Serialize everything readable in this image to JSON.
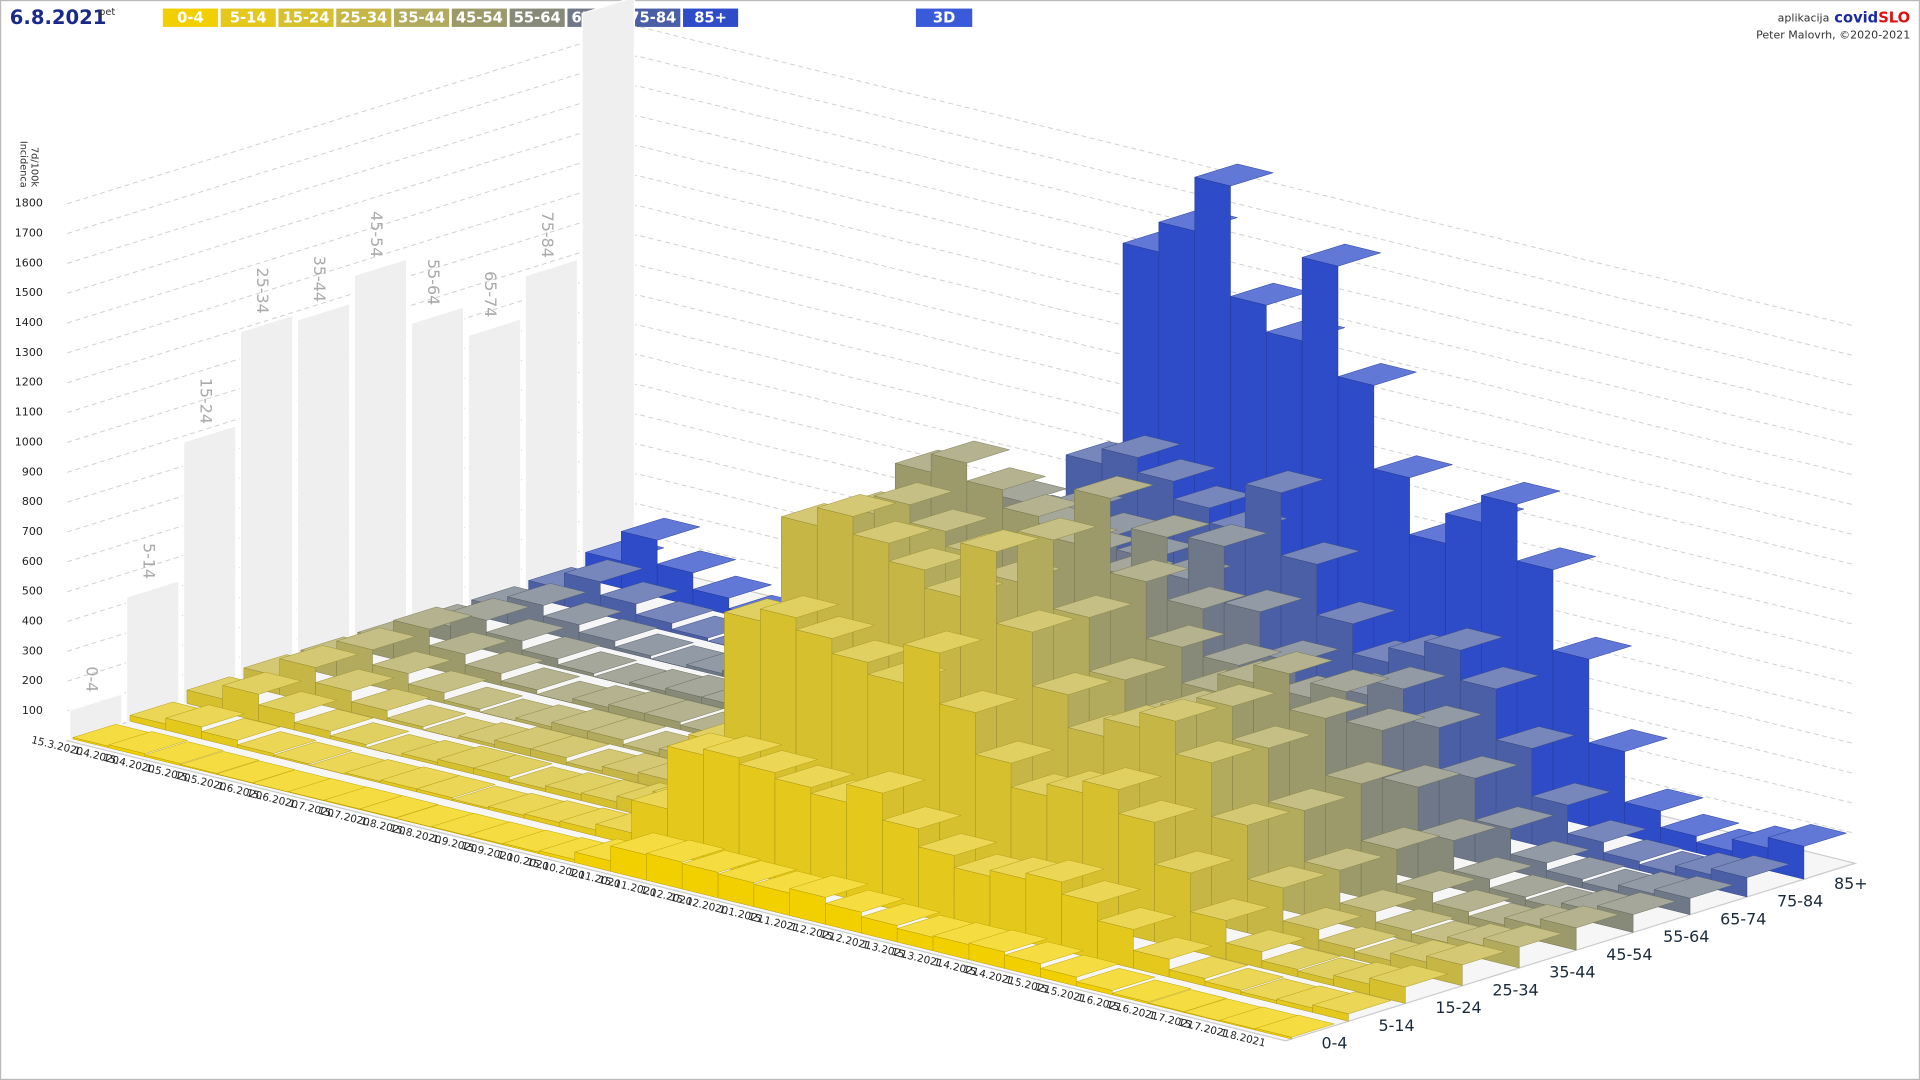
{
  "header": {
    "date": "6.8.2021",
    "weekday": "pet",
    "button_3d": "3D",
    "app_prefix": "aplikacija",
    "app_name_1": "covid",
    "app_name_2": "SLO",
    "author": "Peter Malovrh, ©2020-2021"
  },
  "chart_data": {
    "type": "bar3d",
    "y_label": "Incidenca",
    "y_unit": "7d/100k",
    "x": [
      "15.3.2020",
      "1.4.2020",
      "15.4.2020",
      "1.5.2020",
      "15.5.2020",
      "1.6.2020",
      "15.6.2020",
      "1.7.2020",
      "15.7.2020",
      "1.8.2020",
      "15.8.2020",
      "1.9.2020",
      "15.9.2020",
      "1.10.2020",
      "15.10.2020",
      "1.11.2020",
      "15.11.2020",
      "1.12.2020",
      "15.12.2020",
      "1.1.2021",
      "15.1.2021",
      "1.2.2021",
      "15.2.2021",
      "1.3.2021",
      "15.3.2021",
      "1.4.2021",
      "15.4.2021",
      "1.5.2021",
      "15.5.2021",
      "1.6.2021",
      "15.6.2021",
      "1.7.2021",
      "15.7.2021",
      "1.8.2021"
    ],
    "series": [
      {
        "name": "0-4",
        "color": "#f2d000",
        "values": [
          5,
          10,
          6,
          3,
          1,
          0,
          1,
          2,
          2,
          1,
          2,
          3,
          5,
          10,
          35,
          85,
          90,
          85,
          80,
          75,
          90,
          70,
          55,
          45,
          50,
          55,
          45,
          30,
          15,
          6,
          3,
          2,
          4,
          6
        ]
      },
      {
        "name": "5-14",
        "color": "#e4c81c",
        "values": [
          20,
          40,
          25,
          10,
          5,
          0,
          5,
          10,
          10,
          5,
          10,
          15,
          20,
          40,
          150,
          360,
          380,
          360,
          340,
          320,
          380,
          290,
          230,
          190,
          210,
          230,
          190,
          130,
          60,
          25,
          15,
          10,
          15,
          25
        ]
      },
      {
        "name": "15-24",
        "color": "#d6c02e",
        "values": [
          45,
          90,
          55,
          25,
          10,
          0,
          10,
          20,
          20,
          10,
          20,
          25,
          45,
          90,
          310,
          750,
          790,
          750,
          700,
          660,
          790,
          620,
          480,
          400,
          440,
          480,
          400,
          260,
          130,
          55,
          25,
          20,
          35,
          55
        ]
      },
      {
        "name": "25-34",
        "color": "#c6b646",
        "values": [
          60,
          120,
          70,
          35,
          10,
          0,
          10,
          25,
          25,
          10,
          25,
          35,
          60,
          120,
          420,
          1010,
          1070,
          1010,
          950,
          890,
          1070,
          830,
          650,
          540,
          600,
          650,
          540,
          360,
          180,
          70,
          35,
          25,
          50,
          70
        ]
      },
      {
        "name": "35-44",
        "color": "#b2aa5c",
        "values": [
          60,
          120,
          70,
          35,
          10,
          0,
          10,
          25,
          25,
          10,
          25,
          35,
          60,
          120,
          410,
          990,
          1050,
          990,
          940,
          880,
          1050,
          820,
          640,
          530,
          590,
          640,
          530,
          350,
          180,
          70,
          35,
          25,
          45,
          70
        ]
      },
      {
        "name": "45-54",
        "color": "#9c9a6a",
        "values": [
          60,
          130,
          75,
          40,
          15,
          0,
          15,
          25,
          25,
          15,
          25,
          40,
          60,
          130,
          440,
          1070,
          1130,
          1070,
          1010,
          950,
          1130,
          880,
          690,
          570,
          630,
          690,
          570,
          380,
          190,
          75,
          40,
          25,
          50,
          75
        ]
      },
      {
        "name": "55-64",
        "color": "#878a78",
        "values": [
          50,
          100,
          60,
          30,
          10,
          0,
          10,
          20,
          20,
          10,
          20,
          30,
          50,
          100,
          360,
          880,
          940,
          880,
          830,
          780,
          940,
          730,
          570,
          470,
          520,
          570,
          470,
          310,
          160,
          60,
          30,
          20,
          40,
          60
        ]
      },
      {
        "name": "65-74",
        "color": "#6e7888",
        "values": [
          50,
          90,
          55,
          30,
          10,
          0,
          10,
          20,
          20,
          10,
          20,
          30,
          50,
          90,
          330,
          800,
          850,
          800,
          750,
          710,
          850,
          660,
          520,
          420,
          470,
          520,
          420,
          280,
          140,
          55,
          30,
          20,
          40,
          55
        ]
      },
      {
        "name": "75-84",
        "color": "#4a5fa6",
        "values": [
          55,
          110,
          65,
          30,
          10,
          0,
          10,
          20,
          20,
          10,
          20,
          30,
          55,
          110,
          380,
          920,
          970,
          920,
          860,
          810,
          970,
          760,
          590,
          490,
          540,
          590,
          490,
          320,
          160,
          65,
          30,
          20,
          45,
          65
        ]
      },
      {
        "name": "85+",
        "color": "#2e4bc8",
        "values": [
          90,
          190,
          110,
          55,
          20,
          0,
          20,
          35,
          35,
          20,
          35,
          55,
          90,
          190,
          650,
          1570,
          1670,
          1850,
          1480,
          1390,
          1670,
          1300,
          1020,
          830,
          930,
          1020,
          830,
          560,
          280,
          110,
          55,
          35,
          75,
          110
        ]
      }
    ],
    "wall_values": [
      100,
      420,
      880,
      1190,
      1170,
      1260,
      1040,
      940,
      1080,
      1900
    ],
    "wall_color": "#efefef",
    "ylim": [
      0,
      1900
    ],
    "yticks": [
      100,
      200,
      300,
      400,
      500,
      600,
      700,
      800,
      900,
      1000,
      1100,
      1200,
      1300,
      1400,
      1500,
      1600,
      1700,
      1800
    ],
    "grid": true
  }
}
